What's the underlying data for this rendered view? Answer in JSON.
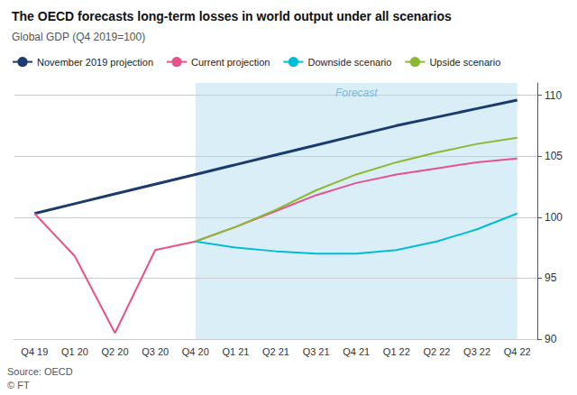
{
  "chart_data": {
    "type": "line",
    "title": "The OECD forecasts long-term losses in world output under all scenarios",
    "subtitle": "Global GDP (Q4 2019=100)",
    "source": [
      "Source: OECD",
      "© FT"
    ],
    "categories": [
      "Q4 19",
      "Q1 20",
      "Q2 20",
      "Q3 20",
      "Q4 20",
      "Q1 21",
      "Q2 21",
      "Q3 21",
      "Q4 21",
      "Q1 22",
      "Q2 22",
      "Q3 22",
      "Q4 22"
    ],
    "series": [
      {
        "name": "November 2019 projection",
        "color": "#1b3a6e",
        "values": [
          100.3,
          101.1,
          101.9,
          102.7,
          103.5,
          104.3,
          105.1,
          105.9,
          106.7,
          107.5,
          108.2,
          108.9,
          109.6
        ]
      },
      {
        "name": "Current projection",
        "color": "#e8528c",
        "values": [
          100.3,
          96.8,
          90.5,
          97.3,
          98.0,
          99.2,
          100.5,
          101.8,
          102.8,
          103.5,
          104.0,
          104.5,
          104.8
        ]
      },
      {
        "name": "Downside scenario",
        "color": "#00bcd4",
        "values": [
          null,
          null,
          null,
          null,
          98.0,
          97.5,
          97.2,
          97.0,
          97.0,
          97.3,
          98.0,
          99.0,
          100.3
        ]
      },
      {
        "name": "Upside scenario",
        "color": "#8cb832",
        "values": [
          null,
          null,
          null,
          null,
          98.0,
          99.2,
          100.6,
          102.2,
          103.5,
          104.5,
          105.3,
          106.0,
          106.5
        ]
      }
    ],
    "annotations": [
      {
        "text": "Forecast",
        "x_from": "Q4 20",
        "x_to": "Q4 22",
        "color": "#daeef8"
      }
    ],
    "ylim": [
      90,
      111
    ],
    "yticks": [
      90,
      95,
      100,
      105,
      110
    ],
    "grid": true,
    "legend": "top"
  }
}
